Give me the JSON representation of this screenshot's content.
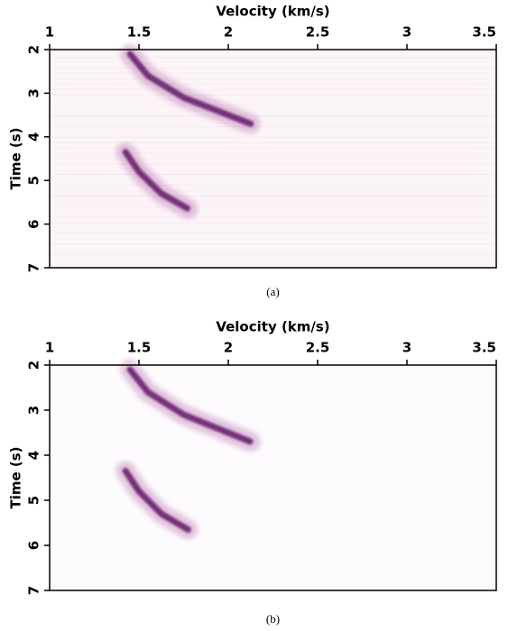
{
  "chart_data": [
    {
      "type": "heatmap",
      "xlabel": "Velocity (km/s)",
      "ylabel": "Time (s)",
      "caption": "(a)",
      "xlim": [
        1,
        3.5
      ],
      "xticks": [
        1,
        1.5,
        2,
        2.5,
        3,
        3.5
      ],
      "ylim": [
        2,
        7
      ],
      "yticks": [
        2,
        3,
        4,
        5,
        6,
        7
      ]
    },
    {
      "type": "heatmap",
      "xlabel": "Velocity (km/s)",
      "ylabel": "Time (s)",
      "caption": "(b)",
      "xlim": [
        1,
        3.5
      ],
      "xticks": [
        1,
        1.5,
        2,
        2.5,
        3,
        3.5
      ],
      "ylim": [
        2,
        7
      ],
      "yticks": [
        2,
        3,
        4,
        5,
        6,
        7
      ]
    }
  ]
}
